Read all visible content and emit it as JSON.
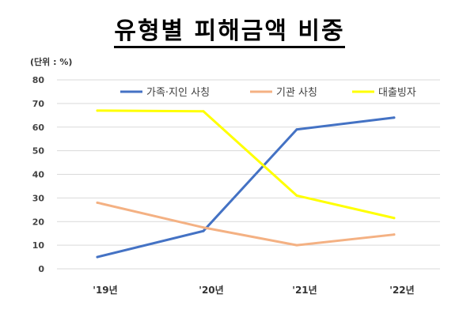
{
  "title": "유형별 피해금액 비중",
  "unit_label": "(단위 : %)",
  "chart_data": {
    "type": "line",
    "title": "유형별 피해금액 비중",
    "categories": [
      "'19년",
      "'20년",
      "'21년",
      "'22년"
    ],
    "ylim": [
      0,
      80
    ],
    "yticks": [
      0,
      10,
      20,
      30,
      40,
      50,
      60,
      70,
      80
    ],
    "grid": true,
    "legend_position": "top",
    "series": [
      {
        "name": "가족·지인 사칭",
        "color": "#4472C4",
        "values": [
          5,
          16,
          59,
          64
        ]
      },
      {
        "name": "기관 사칭",
        "color": "#F4B183",
        "values": [
          28,
          17.5,
          10,
          14.5
        ]
      },
      {
        "name": "대출빙자",
        "color": "#FFFF00",
        "values": [
          67,
          66.7,
          31,
          21.5
        ]
      }
    ]
  }
}
